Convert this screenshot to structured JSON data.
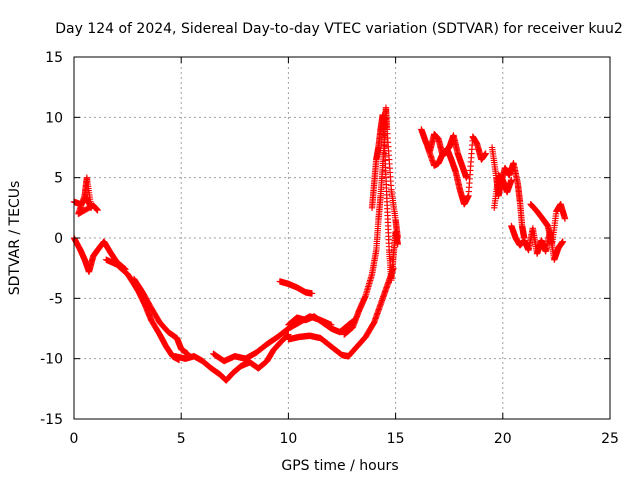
{
  "chart_data": {
    "type": "scatter",
    "title": "Day 124 of 2024, Sidereal Day-to-day VTEC variation (SDTVAR) for receiver kuu2",
    "xlabel": "GPS time / hours",
    "ylabel": "SDTVAR / TECUs",
    "xlim": [
      0,
      25
    ],
    "ylim": [
      -15,
      15
    ],
    "xticks": [
      "0",
      "5",
      "10",
      "15",
      "20",
      "25"
    ],
    "yticks": [
      "-15",
      "-10",
      "-5",
      "0",
      "5",
      "10",
      "15"
    ],
    "grid": true,
    "marker": "plus",
    "series": [
      {
        "name": "SDTVAR",
        "color": "#ff0000",
        "segments": [
          [
            [
              0.0,
              3.0
            ],
            [
              0.3,
              2.8
            ],
            [
              0.6,
              3.3
            ],
            [
              0.8,
              2.5
            ],
            [
              0.6,
              5.0
            ],
            [
              0.5,
              3.5
            ],
            [
              0.2,
              2.0
            ],
            [
              0.9,
              2.7
            ],
            [
              1.1,
              2.3
            ]
          ],
          [
            [
              0.0,
              0.0
            ],
            [
              0.3,
              -1.0
            ],
            [
              0.5,
              -1.8
            ],
            [
              0.7,
              -2.8
            ],
            [
              0.9,
              -1.5
            ],
            [
              1.1,
              -1.0
            ],
            [
              1.4,
              -0.3
            ],
            [
              1.7,
              -1.2
            ],
            [
              2.0,
              -2.0
            ],
            [
              2.4,
              -2.6
            ]
          ],
          [
            [
              1.5,
              -1.8
            ],
            [
              2.0,
              -2.2
            ],
            [
              2.5,
              -3.0
            ],
            [
              2.8,
              -3.8
            ],
            [
              3.0,
              -4.4
            ],
            [
              3.3,
              -5.5
            ],
            [
              3.6,
              -6.8
            ],
            [
              4.0,
              -8.0
            ],
            [
              4.3,
              -9.0
            ],
            [
              4.6,
              -9.8
            ],
            [
              4.9,
              -10.1
            ]
          ],
          [
            [
              2.8,
              -3.4
            ],
            [
              3.2,
              -4.5
            ],
            [
              3.6,
              -5.8
            ],
            [
              4.0,
              -7.0
            ],
            [
              4.4,
              -7.8
            ],
            [
              4.8,
              -8.3
            ],
            [
              5.0,
              -9.2
            ],
            [
              5.3,
              -9.6
            ]
          ],
          [
            [
              4.7,
              -9.8
            ],
            [
              5.2,
              -10.0
            ],
            [
              5.6,
              -9.8
            ],
            [
              6.0,
              -10.2
            ],
            [
              6.4,
              -10.8
            ],
            [
              6.8,
              -11.3
            ],
            [
              7.1,
              -11.8
            ],
            [
              7.4,
              -11.2
            ],
            [
              7.8,
              -10.6
            ],
            [
              8.2,
              -10.3
            ],
            [
              8.6,
              -10.8
            ],
            [
              9.0,
              -10.2
            ],
            [
              9.3,
              -9.3
            ],
            [
              9.6,
              -8.7
            ],
            [
              10.0,
              -8.0
            ]
          ],
          [
            [
              6.5,
              -9.6
            ],
            [
              7.0,
              -10.2
            ],
            [
              7.5,
              -9.8
            ],
            [
              8.0,
              -10.0
            ],
            [
              8.5,
              -9.5
            ],
            [
              9.0,
              -8.8
            ],
            [
              9.5,
              -8.2
            ],
            [
              10.0,
              -7.5
            ],
            [
              10.5,
              -7.0
            ],
            [
              11.0,
              -6.5
            ],
            [
              11.5,
              -6.8
            ],
            [
              12.0,
              -7.2
            ]
          ],
          [
            [
              9.6,
              -3.6
            ],
            [
              10.0,
              -3.8
            ],
            [
              10.4,
              -4.1
            ],
            [
              10.8,
              -4.5
            ],
            [
              11.1,
              -4.6
            ]
          ],
          [
            [
              10.0,
              -7.2
            ],
            [
              10.4,
              -6.6
            ],
            [
              10.8,
              -6.8
            ],
            [
              11.2,
              -6.5
            ],
            [
              11.6,
              -7.0
            ],
            [
              12.0,
              -7.5
            ],
            [
              12.4,
              -7.8
            ],
            [
              12.8,
              -7.2
            ],
            [
              13.1,
              -6.8
            ]
          ],
          [
            [
              10.0,
              -8.4
            ],
            [
              10.5,
              -8.2
            ],
            [
              11.0,
              -8.1
            ],
            [
              11.5,
              -8.3
            ],
            [
              12.0,
              -9.0
            ],
            [
              12.5,
              -9.7
            ],
            [
              12.8,
              -9.8
            ],
            [
              13.2,
              -9.0
            ],
            [
              13.6,
              -8.2
            ],
            [
              14.0,
              -7.0
            ],
            [
              14.3,
              -5.5
            ],
            [
              14.6,
              -4.0
            ],
            [
              14.9,
              -2.5
            ]
          ],
          [
            [
              12.6,
              -8.0
            ],
            [
              13.0,
              -7.4
            ],
            [
              13.3,
              -6.0
            ],
            [
              13.6,
              -4.8
            ],
            [
              13.9,
              -3.0
            ],
            [
              14.1,
              -1.0
            ],
            [
              14.2,
              1.5
            ],
            [
              14.3,
              3.5
            ],
            [
              14.4,
              6.0
            ],
            [
              14.5,
              8.5
            ],
            [
              14.55,
              10.8
            ],
            [
              14.6,
              9.0
            ],
            [
              14.8,
              4.0
            ],
            [
              15.0,
              1.5
            ],
            [
              15.1,
              0.0
            ]
          ],
          [
            [
              13.9,
              2.5
            ],
            [
              14.0,
              4.5
            ],
            [
              14.1,
              6.5
            ],
            [
              14.2,
              7.5
            ],
            [
              14.3,
              9.0
            ],
            [
              14.4,
              10.2
            ],
            [
              14.5,
              7.0
            ],
            [
              14.6,
              3.0
            ],
            [
              14.7,
              -1.0
            ],
            [
              14.8,
              -3.5
            ],
            [
              14.9,
              -1.5
            ],
            [
              15.0,
              0.5
            ],
            [
              15.1,
              -0.5
            ]
          ],
          [
            [
              16.2,
              9.0
            ],
            [
              16.4,
              8.0
            ],
            [
              16.6,
              7.2
            ],
            [
              16.8,
              8.6
            ],
            [
              17.0,
              8.2
            ],
            [
              17.2,
              6.8
            ],
            [
              17.4,
              7.4
            ],
            [
              17.6,
              6.5
            ],
            [
              17.8,
              5.5
            ],
            [
              18.0,
              4.0
            ],
            [
              18.2,
              2.8
            ],
            [
              18.4,
              3.5
            ],
            [
              18.6,
              8.4
            ],
            [
              18.8,
              7.8
            ],
            [
              19.0,
              6.5
            ],
            [
              19.2,
              7.0
            ]
          ],
          [
            [
              16.5,
              7.5
            ],
            [
              16.8,
              6.0
            ],
            [
              17.0,
              6.2
            ],
            [
              17.2,
              7.0
            ],
            [
              17.5,
              7.5
            ],
            [
              17.7,
              8.5
            ],
            [
              17.9,
              7.0
            ],
            [
              18.1,
              6.0
            ],
            [
              18.3,
              5.0
            ]
          ],
          [
            [
              19.5,
              7.5
            ],
            [
              19.7,
              5.0
            ],
            [
              19.8,
              3.5
            ],
            [
              19.9,
              4.5
            ],
            [
              20.1,
              5.8
            ],
            [
              20.3,
              5.2
            ],
            [
              20.5,
              6.2
            ],
            [
              20.7,
              4.5
            ],
            [
              20.8,
              3.0
            ],
            [
              20.9,
              1.0
            ],
            [
              21.0,
              0.0
            ]
          ],
          [
            [
              19.6,
              2.5
            ],
            [
              19.8,
              5.2
            ],
            [
              20.0,
              4.8
            ],
            [
              20.2,
              3.8
            ],
            [
              20.4,
              4.8
            ]
          ],
          [
            [
              20.4,
              1.0
            ],
            [
              20.6,
              0.0
            ],
            [
              20.8,
              -0.6
            ],
            [
              21.0,
              -0.2
            ],
            [
              21.2,
              -1.0
            ],
            [
              21.4,
              0.8
            ],
            [
              21.6,
              -1.3
            ],
            [
              21.8,
              -0.2
            ],
            [
              22.0,
              -1.1
            ],
            [
              22.2,
              0.5
            ],
            [
              22.4,
              -1.8
            ],
            [
              22.6,
              -0.8
            ],
            [
              22.8,
              -0.3
            ]
          ],
          [
            [
              21.3,
              2.8
            ],
            [
              21.6,
              2.2
            ],
            [
              21.9,
              1.5
            ],
            [
              22.1,
              1.0
            ],
            [
              22.3,
              -0.5
            ],
            [
              22.5,
              2.2
            ],
            [
              22.7,
              2.8
            ],
            [
              22.9,
              1.6
            ]
          ]
        ]
      }
    ]
  }
}
